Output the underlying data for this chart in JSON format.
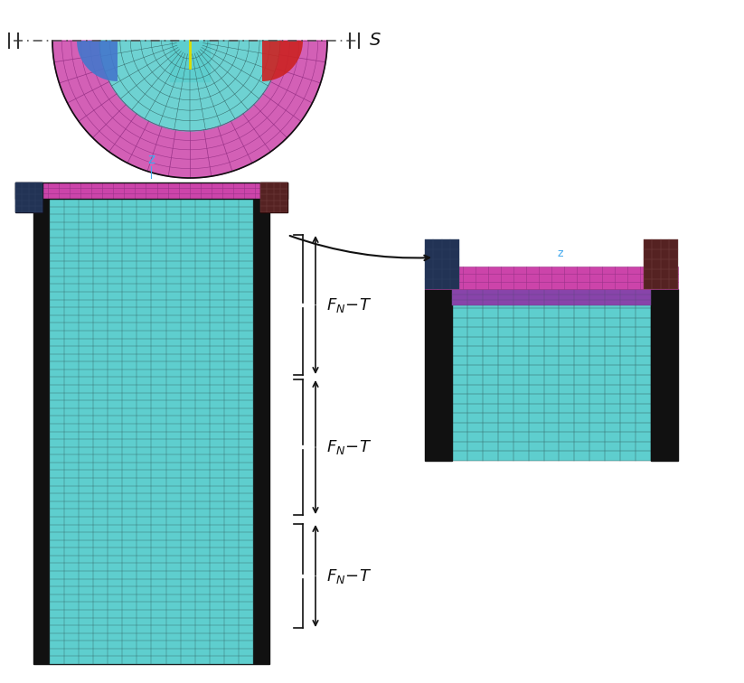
{
  "bg_color": "#ffffff",
  "cyan_mesh": "#5ecece",
  "magenta_mesh": "#cc44aa",
  "dark_navy": "#1a1a2e",
  "black": "#000000",
  "red_mesh": "#cc2222",
  "blue_mesh": "#4477cc",
  "purple_mesh": "#7744aa",
  "yellow_line": "#dddd00",
  "axis_color": "#44aaee",
  "grid_line": "#336666",
  "title_S": "S",
  "label_FNT": "F_{N}-T",
  "arrow_color": "#111111"
}
